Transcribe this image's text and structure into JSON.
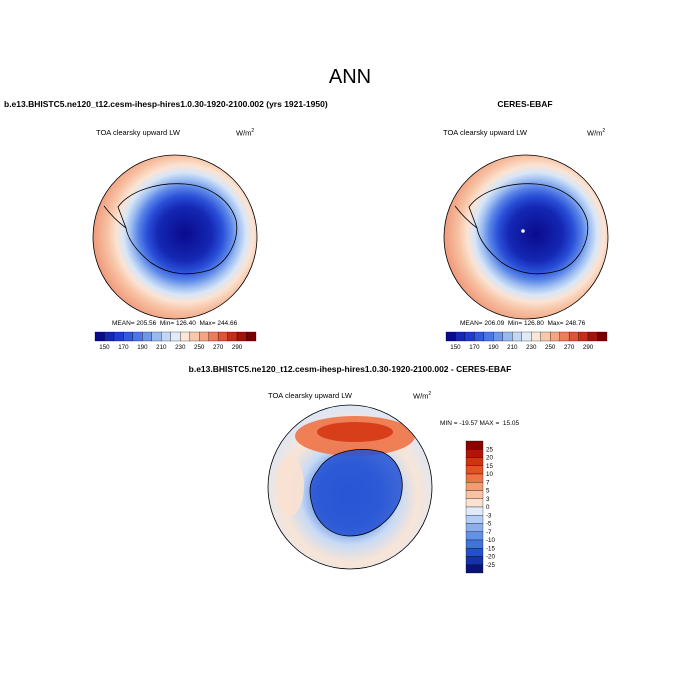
{
  "title": "ANN",
  "panels": {
    "case": {
      "title": "b.e13.BHISTC5.ne120_t12.cesm-ihesp-hires1.0.30-1920-2100.002 (yrs 1921-1950)",
      "variable": "TOA clearsky upward LW",
      "units_base": "W/m",
      "units_exp": "2",
      "stats": "MEAN= 205.56  Min= 126.40  Max= 244.66"
    },
    "ref": {
      "title": "CERES-EBAF",
      "variable": "TOA clearsky upward LW",
      "units_base": "W/m",
      "units_exp": "2",
      "stats": "MEAN= 206.09  Min= 126.80  Max= 248.76"
    },
    "diff": {
      "title": "b.e13.BHISTC5.ne120_t12.cesm-ihesp-hires1.0.30-1920-2100.002 - CERES-EBAF",
      "variable": "TOA clearsky upward LW",
      "units_base": "W/m",
      "units_exp": "2",
      "stats": "MIN = -19.57 MAX =  15.05"
    }
  },
  "colorbars": {
    "field": {
      "labels": [
        "150",
        "170",
        "190",
        "210",
        "230",
        "250",
        "270",
        "290"
      ],
      "colors": [
        "#0a0a8c",
        "#1428b4",
        "#1e3cd2",
        "#325adc",
        "#4b78e6",
        "#6e96eb",
        "#96b9f0",
        "#c3d7f5",
        "#e1ebf8",
        "#fbe6d7",
        "#f8c8aa",
        "#f5a582",
        "#eb7d5a",
        "#dc5537",
        "#c32d19",
        "#a0140a",
        "#780000"
      ]
    },
    "diff": {
      "labels": [
        "25",
        "20",
        "15",
        "10",
        "7",
        "5",
        "3",
        "0",
        "-3",
        "-5",
        "-7",
        "-10",
        "-15",
        "-20",
        "-25"
      ],
      "colors": [
        "#8c0000",
        "#b41405",
        "#d2320f",
        "#e65023",
        "#f07346",
        "#f59b73",
        "#f8c3a5",
        "#fbe1d2",
        "#e1ebf8",
        "#b4cdf5",
        "#8cafeb",
        "#6491e6",
        "#4173dc",
        "#2350d2",
        "#1432aa",
        "#0a1478"
      ]
    }
  }
}
